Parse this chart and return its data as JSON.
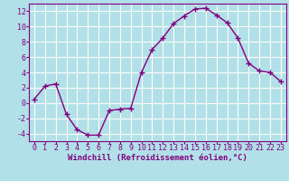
{
  "x": [
    0,
    1,
    2,
    3,
    4,
    5,
    6,
    7,
    8,
    9,
    10,
    11,
    12,
    13,
    14,
    15,
    16,
    17,
    18,
    19,
    20,
    21,
    22,
    23
  ],
  "y": [
    0.5,
    2.2,
    2.5,
    -1.5,
    -3.5,
    -4.2,
    -4.2,
    -1.0,
    -0.8,
    -0.7,
    4.0,
    7.0,
    8.5,
    10.4,
    11.4,
    12.3,
    12.4,
    11.5,
    10.5,
    8.5,
    5.2,
    4.2,
    4.0,
    2.8
  ],
  "line_color": "#800080",
  "marker": "+",
  "marker_size": 4,
  "background_color": "#b2e0e8",
  "grid_color": "#ffffff",
  "xlabel": "Windchill (Refroidissement éolien,°C)",
  "xlim": [
    -0.5,
    23.5
  ],
  "ylim": [
    -5,
    13
  ],
  "yticks": [
    -4,
    -2,
    0,
    2,
    4,
    6,
    8,
    10,
    12
  ],
  "xticks": [
    0,
    1,
    2,
    3,
    4,
    5,
    6,
    7,
    8,
    9,
    10,
    11,
    12,
    13,
    14,
    15,
    16,
    17,
    18,
    19,
    20,
    21,
    22,
    23
  ],
  "tick_color": "#800080",
  "label_color": "#800080",
  "xlabel_fontsize": 6.5,
  "tick_fontsize": 6.0,
  "line_width": 1.0
}
